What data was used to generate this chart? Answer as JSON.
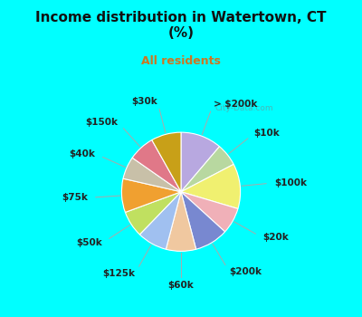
{
  "title": "Income distribution in Watertown, CT\n(%)",
  "subtitle": "All residents",
  "title_color": "#111111",
  "subtitle_color": "#cc7722",
  "bg_cyan": "#00ffff",
  "bg_chart": "#c8e8d0",
  "labels_clockwise": [
    "> $200k",
    "$10k",
    "$100k",
    "$20k",
    "$200k",
    "$60k",
    "$125k",
    "$50k",
    "$75k",
    "$40k",
    "$150k",
    "$30k"
  ],
  "sizes": [
    11,
    6,
    12,
    7,
    9,
    8,
    8,
    7,
    9,
    6,
    7,
    8
  ],
  "colors": [
    "#b8a8e0",
    "#b8d8a0",
    "#f0f070",
    "#f0b0b8",
    "#7888d0",
    "#f0c8a0",
    "#a0c0f0",
    "#c0e060",
    "#f0a030",
    "#c8c0a8",
    "#e07888",
    "#c8a018"
  ],
  "startangle": 90,
  "wedge_edge_color": "white",
  "label_fontsize": 7.5,
  "label_color": "#222222"
}
